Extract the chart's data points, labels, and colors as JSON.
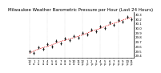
{
  "title": "Milwaukee Weather Barometric Pressure per Hour (Last 24 Hours)",
  "background_color": "#ffffff",
  "plot_bg_color": "#ffffff",
  "grid_color": "#bbbbbb",
  "line_color": "#dd0000",
  "marker_color": "#111111",
  "hours": [
    0,
    1,
    2,
    3,
    4,
    5,
    6,
    7,
    8,
    9,
    10,
    11,
    12,
    13,
    14,
    15,
    16,
    17,
    18,
    19,
    20,
    21,
    22,
    23
  ],
  "pressure": [
    29.45,
    29.5,
    29.54,
    29.57,
    29.6,
    29.63,
    29.67,
    29.71,
    29.73,
    29.76,
    29.79,
    29.82,
    29.85,
    29.89,
    29.93,
    29.96,
    29.99,
    30.03,
    30.07,
    30.1,
    30.13,
    30.17,
    30.2,
    30.23
  ],
  "pressure_offset": [
    0.04,
    -0.04,
    0.035,
    -0.03,
    0.04,
    -0.035,
    0.04,
    -0.04,
    0.035,
    -0.03,
    0.04,
    -0.035,
    0.04,
    -0.04,
    0.035,
    -0.03,
    0.04,
    -0.035,
    0.04,
    -0.04,
    0.035,
    -0.03,
    0.04,
    -0.04
  ],
  "ylim_min": 29.35,
  "ylim_max": 30.35,
  "yticks": [
    29.4,
    29.5,
    29.6,
    29.7,
    29.8,
    29.9,
    30.0,
    30.1,
    30.2,
    30.3
  ],
  "title_fontsize": 4.0,
  "tick_fontsize": 2.8
}
